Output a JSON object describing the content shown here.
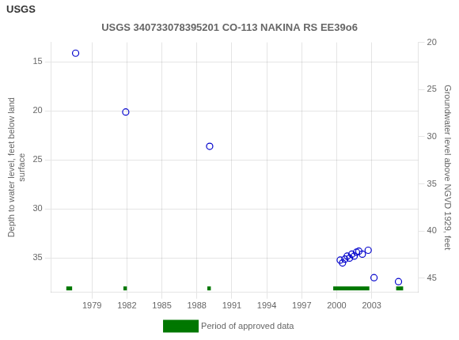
{
  "chart_data": {
    "type": "scatter",
    "title": "USGS 340733078395201 CO-113 NAKINA RS EE39o6",
    "annotations": [
      "USGS"
    ],
    "ylabel": "Depth to water level, feet below land\nsurface",
    "y2label": "Groundwater level above NGVD 1929, feet",
    "xlim": [
      1975.5,
      2007.0
    ],
    "xticks": [
      1979,
      1982,
      1985,
      1988,
      1991,
      1994,
      1997,
      2000,
      2003
    ],
    "ylim": [
      38.5,
      13.0
    ],
    "yticks": [
      15,
      20,
      25,
      30,
      35
    ],
    "y2lim": [
      46.5,
      20.0
    ],
    "y2ticks": [
      45,
      40,
      35,
      30,
      25,
      20
    ],
    "grid": true,
    "legend": "bottom",
    "series": [
      {
        "type": "scatter",
        "color": "#0000cc",
        "marker": "circle",
        "x": [
          1977.6,
          1981.9,
          1989.1,
          2000.3,
          2000.5,
          2000.7,
          2000.9,
          2001.1,
          2001.3,
          2001.5,
          2001.7,
          2001.9,
          2002.2,
          2002.7,
          2003.2,
          2005.3
        ],
        "values": [
          14.1,
          20.1,
          23.6,
          35.2,
          35.5,
          35.1,
          34.8,
          35.0,
          34.6,
          34.8,
          34.4,
          34.3,
          34.6,
          34.2,
          37.0,
          37.4
        ]
      },
      {
        "name": "Period of approved data",
        "type": "line",
        "color": "#007700",
        "x_start": [
          1976.8,
          1981.7,
          1988.9,
          1999.7,
          2005.1
        ],
        "x_end": [
          1977.3,
          1982.0,
          1989.2,
          2002.8,
          2005.7
        ],
        "values": [
          38.1,
          38.1,
          38.1,
          38.1,
          38.1
        ]
      }
    ]
  }
}
